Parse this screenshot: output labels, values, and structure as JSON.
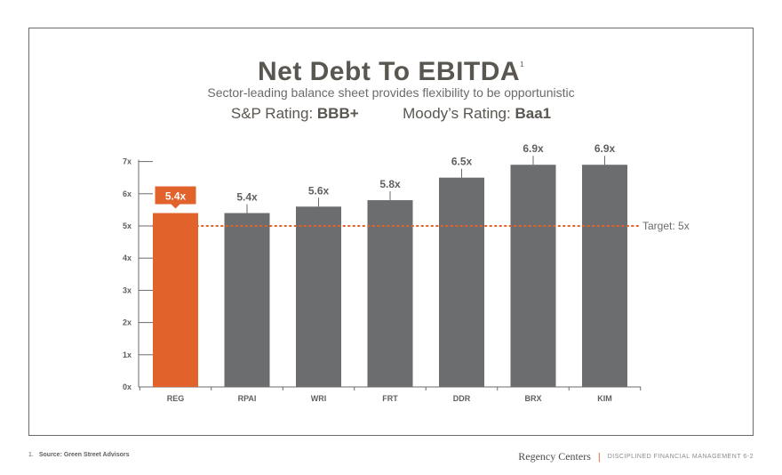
{
  "header": {
    "title": "Net Debt To EBITDA",
    "title_footnote_mark": "1",
    "subtitle": "Sector-leading balance sheet provides flexibility to be opportunistic",
    "sp_label": "S&P Rating:",
    "sp_value": "BBB+",
    "moodys_label": "Moody’s Rating:",
    "moodys_value": "Baa1"
  },
  "chart_data": {
    "type": "bar",
    "title": "Net Debt To EBITDA",
    "categories": [
      "REG",
      "RPAI",
      "WRI",
      "FRT",
      "DDR",
      "BRX",
      "KIM"
    ],
    "values": [
      5.4,
      5.4,
      5.6,
      5.8,
      6.5,
      6.9,
      6.9
    ],
    "data_labels": [
      "5.4x",
      "5.4x",
      "5.6x",
      "5.8x",
      "6.5x",
      "6.9x",
      "6.9x"
    ],
    "highlight_index": 0,
    "y_ticks": [
      0,
      1,
      2,
      3,
      4,
      5,
      6,
      7
    ],
    "y_tick_labels": [
      "0x",
      "1x",
      "2x",
      "3x",
      "4x",
      "5x",
      "6x",
      "7x"
    ],
    "ylim": [
      0,
      7
    ],
    "target_value": 5,
    "target_label": "Target: 5x",
    "colors": {
      "highlight": "#e2622c",
      "bar": "#6b6d6e",
      "target": "#e2622c",
      "axis": "#6b6b6b"
    }
  },
  "footer": {
    "footnote_number": "1.",
    "footnote_text": "Source: Green Street Advisors",
    "brand": "Regency Centers",
    "separator": "|",
    "section": "DISCIPLINED FINANCIAL MANAGEMENT 6-2"
  }
}
